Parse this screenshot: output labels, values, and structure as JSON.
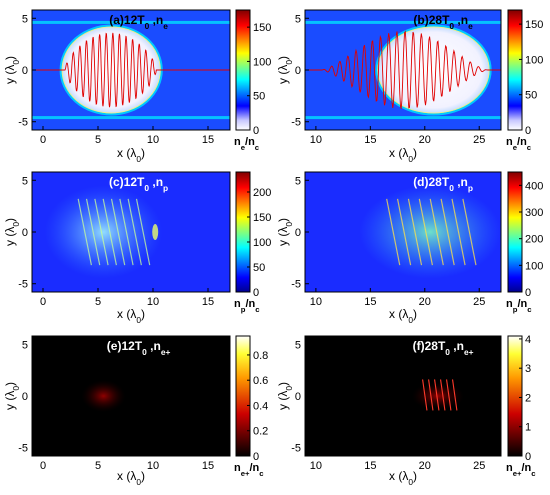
{
  "figure": {
    "panels": [
      {
        "label": "(a)12T",
        "sub": "0",
        "tail": " ,n",
        "tail_sub": "e",
        "cbar_label": "n",
        "cbar_sub": "e",
        "cbar_den": "/n",
        "cbar_den_sub": "c",
        "cmap": "jet_white"
      },
      {
        "label": "(b)28T",
        "sub": "0",
        "tail": " ,n",
        "tail_sub": "e",
        "cbar_label": "n",
        "cbar_sub": "e",
        "cbar_den": "/n",
        "cbar_den_sub": "c",
        "cmap": "jet_white"
      },
      {
        "label": "(c)12T",
        "sub": "0",
        "tail": " ,n",
        "tail_sub": "p",
        "cbar_label": "n",
        "cbar_sub": "p",
        "cbar_den": "/n",
        "cbar_den_sub": "c",
        "cmap": "jet"
      },
      {
        "label": "(d)28T",
        "sub": "0",
        "tail": " ,n",
        "tail_sub": "p",
        "cbar_label": "n",
        "cbar_sub": "p",
        "cbar_den": "/n",
        "cbar_den_sub": "c",
        "cmap": "jet"
      },
      {
        "label": "(e)12T",
        "sub": "0",
        "tail": " ,n",
        "tail_sub": "e+",
        "cbar_label": "n",
        "cbar_sub": "e+",
        "cbar_den": "/n",
        "cbar_den_sub": "c",
        "cmap": "hot"
      },
      {
        "label": "(f)28T",
        "sub": "0",
        "tail": " ,n",
        "tail_sub": "e+",
        "cbar_label": "n",
        "cbar_sub": "e+",
        "cbar_den": "/n",
        "cbar_den_sub": "c",
        "cmap": "hot"
      }
    ],
    "xlabel": {
      "main": "x (λ",
      "sub": "0",
      "close": ")"
    },
    "ylabel": {
      "main": "y (λ",
      "sub": "0",
      "close": ")"
    }
  },
  "chart_data": [
    {
      "type": "heatmap",
      "panel": "a",
      "x_range": [
        -1,
        17
      ],
      "y_range": [
        -5.8,
        5.8
      ],
      "x_ticks": [
        0,
        5,
        10,
        15
      ],
      "y_ticks": [
        -5,
        0,
        5
      ],
      "colorbar_range": [
        0,
        175
      ],
      "colorbar_ticks": [
        0,
        50,
        100,
        150
      ],
      "overlay": "laser field (red line)"
    },
    {
      "type": "heatmap",
      "panel": "b",
      "x_range": [
        9,
        27
      ],
      "y_range": [
        -5.8,
        5.8
      ],
      "x_ticks": [
        10,
        15,
        20,
        25
      ],
      "y_ticks": [
        -5,
        0,
        5
      ],
      "colorbar_range": [
        0,
        170
      ],
      "colorbar_ticks": [
        0,
        50,
        100,
        150
      ],
      "overlay": "laser field (red line)"
    },
    {
      "type": "heatmap",
      "panel": "c",
      "x_range": [
        -1,
        17
      ],
      "y_range": [
        -5.8,
        5.8
      ],
      "x_ticks": [
        0,
        5,
        10,
        15
      ],
      "y_ticks": [
        -5,
        0,
        5
      ],
      "colorbar_range": [
        0,
        240
      ],
      "colorbar_ticks": [
        0,
        50,
        100,
        150,
        200
      ]
    },
    {
      "type": "heatmap",
      "panel": "d",
      "x_range": [
        9,
        27
      ],
      "y_range": [
        -5.8,
        5.8
      ],
      "x_ticks": [
        10,
        15,
        20,
        25
      ],
      "y_ticks": [
        -5,
        0,
        5
      ],
      "colorbar_range": [
        0,
        450
      ],
      "colorbar_ticks": [
        0,
        100,
        200,
        300,
        400
      ]
    },
    {
      "type": "heatmap",
      "panel": "e",
      "x_range": [
        -1,
        17
      ],
      "y_range": [
        -5.8,
        5.8
      ],
      "x_ticks": [
        0,
        5,
        10,
        15
      ],
      "y_ticks": [
        -5,
        0,
        5
      ],
      "colorbar_range": [
        0,
        0.95
      ],
      "colorbar_ticks": [
        0,
        0.2,
        0.4,
        0.6,
        0.8
      ]
    },
    {
      "type": "heatmap",
      "panel": "f",
      "x_range": [
        9,
        27
      ],
      "y_range": [
        -5.8,
        5.8
      ],
      "x_ticks": [
        10,
        15,
        20,
        25
      ],
      "y_ticks": [
        -5,
        0,
        5
      ],
      "colorbar_range": [
        0,
        4.1
      ],
      "colorbar_ticks": [
        0,
        1,
        2,
        3,
        4
      ]
    }
  ]
}
